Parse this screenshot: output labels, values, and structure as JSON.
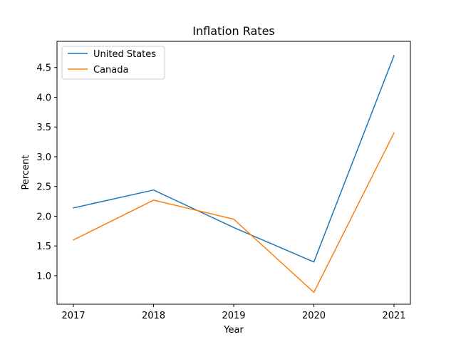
{
  "chart_data": {
    "type": "line",
    "title": "Inflation Rates",
    "xlabel": "Year",
    "ylabel": "Percent",
    "x": [
      "2017",
      "2018",
      "2019",
      "2020",
      "2021"
    ],
    "ylim": [
      0.52,
      4.94
    ],
    "y_ticks": [
      "1.0",
      "1.5",
      "2.0",
      "2.5",
      "3.0",
      "3.5",
      "4.0",
      "4.5"
    ],
    "grid": false,
    "legend_position": "top-left",
    "series": [
      {
        "name": "United States",
        "color": "#1f77b4",
        "values": [
          2.14,
          2.44,
          1.81,
          1.23,
          4.7
        ]
      },
      {
        "name": "Canada",
        "color": "#ff7f0e",
        "values": [
          1.6,
          2.27,
          1.95,
          0.72,
          3.4
        ]
      }
    ]
  }
}
